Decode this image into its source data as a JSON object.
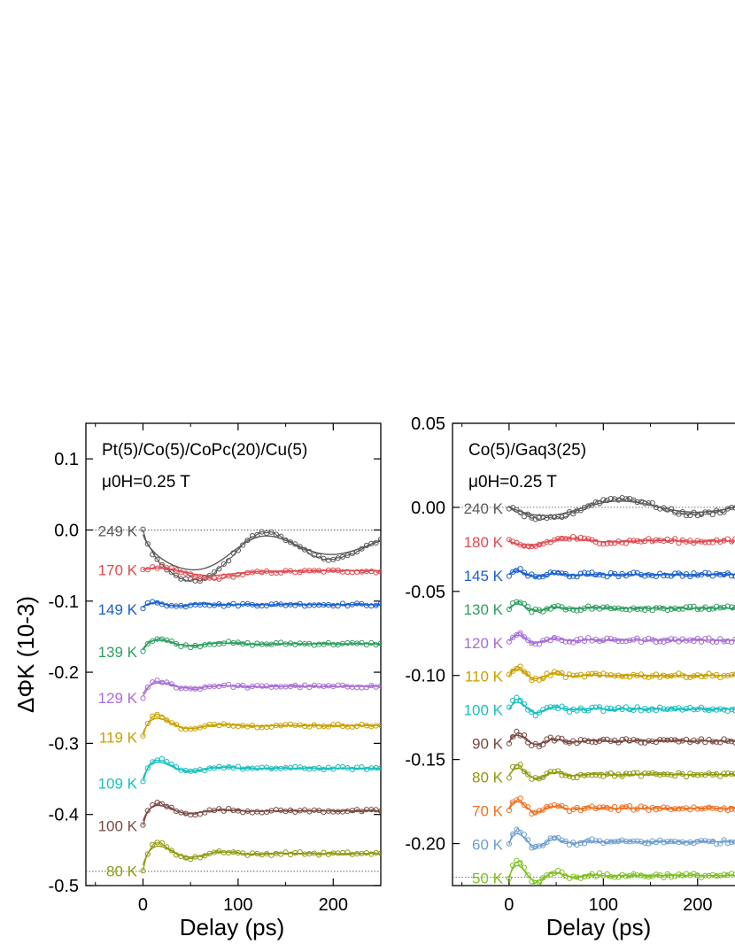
{
  "chart_data": [
    {
      "type": "line",
      "id": "left",
      "annotation_lines": [
        "Pt(5)/Co(5)/CoPc(20)/Cu(5)",
        "μ0H=0.25 T"
      ],
      "xlabel": "Delay (ps)",
      "ylabel": "ΔΦK (10-3)",
      "xlim": [
        -60,
        250
      ],
      "ylim": [
        -0.5,
        0.15
      ],
      "xticks": [
        0,
        100,
        200
      ],
      "yticks": [
        0.1,
        0.0,
        -0.1,
        -0.2,
        -0.3,
        -0.4,
        -0.5
      ],
      "ytick_labels": [
        "0.1",
        "0.0",
        "-0.1",
        "-0.2",
        "-0.3",
        "-0.4",
        "-0.5"
      ],
      "reference_lines": [
        0.0,
        -0.48
      ],
      "series": [
        {
          "name": "249 K",
          "color": "#5a5a5a",
          "offset": 0.0,
          "plateau": -0.02,
          "fit_plateau": -0.02,
          "amp": -0.04,
          "dip": -0.035,
          "period": 160,
          "decay": 300
        },
        {
          "name": "170 K",
          "color": "#e04a50",
          "offset": -0.055,
          "plateau": -0.058,
          "fit_plateau": -0.057,
          "amp": 0.008,
          "dip": -0.008,
          "period": 90,
          "decay": 60
        },
        {
          "name": "149 K",
          "color": "#1a5fcf",
          "offset": -0.11,
          "plateau": -0.105,
          "fit_plateau": -0.105,
          "amp": 0.006,
          "dip": 0.0,
          "period": 50,
          "decay": 40
        },
        {
          "name": "139 K",
          "color": "#2e9e5e",
          "offset": -0.17,
          "plateau": -0.16,
          "fit_plateau": -0.16,
          "amp": 0.012,
          "dip": 0.0,
          "period": 70,
          "decay": 40
        },
        {
          "name": "129 K",
          "color": "#a66ed6",
          "offset": -0.235,
          "plateau": -0.22,
          "fit_plateau": -0.22,
          "amp": 0.012,
          "dip": 0.0,
          "period": 70,
          "decay": 40
        },
        {
          "name": "119 K",
          "color": "#c9a000",
          "offset": -0.29,
          "plateau": -0.275,
          "fit_plateau": -0.275,
          "amp": 0.025,
          "dip": 0.0,
          "period": 70,
          "decay": 35
        },
        {
          "name": "109 K",
          "color": "#18bfbf",
          "offset": -0.355,
          "plateau": -0.335,
          "fit_plateau": -0.335,
          "amp": 0.022,
          "dip": 0.0,
          "period": 70,
          "decay": 35
        },
        {
          "name": "100 K",
          "color": "#7a4a44",
          "offset": -0.415,
          "plateau": -0.395,
          "fit_plateau": -0.395,
          "amp": 0.02,
          "dip": 0.0,
          "period": 70,
          "decay": 35
        },
        {
          "name": "80 K",
          "color": "#8f9a10",
          "offset": -0.478,
          "plateau": -0.455,
          "fit_plateau": -0.455,
          "amp": 0.025,
          "dip": 0.0,
          "period": 70,
          "decay": 40
        }
      ]
    },
    {
      "type": "line",
      "id": "right",
      "annotation_lines": [
        "Co(5)/Gaq3(25)",
        "μ0H=0.25 T"
      ],
      "xlabel": "Delay (ps)",
      "ylabel": "",
      "xlim": [
        -60,
        250
      ],
      "ylim": [
        -0.225,
        0.05
      ],
      "xticks": [
        0,
        100,
        200
      ],
      "yticks": [
        0.05,
        0.0,
        -0.05,
        -0.1,
        -0.15,
        -0.2
      ],
      "ytick_labels": [
        "0.05",
        "0.00",
        "-0.05",
        "-0.10",
        "-0.15",
        "-0.20"
      ],
      "reference_lines": [
        0.0,
        -0.22
      ],
      "series": [
        {
          "name": "240 K",
          "color": "#5a5a5a",
          "offset": 0.0,
          "plateau": 0.0,
          "fit_plateau": 0.0,
          "amp": -0.008,
          "dip": 0.0,
          "period": 160,
          "decay": 300
        },
        {
          "name": "180 K",
          "color": "#e04a50",
          "offset": -0.02,
          "plateau": -0.02,
          "fit_plateau": -0.02,
          "amp": -0.005,
          "dip": 0.0,
          "period": 90,
          "decay": 60
        },
        {
          "name": "145 K",
          "color": "#1a5fcf",
          "offset": -0.04,
          "plateau": -0.04,
          "fit_plateau": -0.04,
          "amp": 0.004,
          "dip": 0.0,
          "period": 40,
          "decay": 30
        },
        {
          "name": "130 K",
          "color": "#2e9e5e",
          "offset": -0.06,
          "plateau": -0.06,
          "fit_plateau": -0.06,
          "amp": 0.005,
          "dip": 0.0,
          "period": 40,
          "decay": 30
        },
        {
          "name": "120 K",
          "color": "#a66ed6",
          "offset": -0.08,
          "plateau": -0.079,
          "fit_plateau": -0.079,
          "amp": 0.006,
          "dip": 0.0,
          "period": 40,
          "decay": 30
        },
        {
          "name": "110 K",
          "color": "#c9a000",
          "offset": -0.1,
          "plateau": -0.1,
          "fit_plateau": -0.1,
          "amp": 0.007,
          "dip": 0.0,
          "period": 40,
          "decay": 30
        },
        {
          "name": "100 K",
          "color": "#18bfbf",
          "offset": -0.12,
          "plateau": -0.12,
          "fit_plateau": -0.12,
          "amp": 0.008,
          "dip": 0.0,
          "period": 40,
          "decay": 30
        },
        {
          "name": "90 K",
          "color": "#7a4a44",
          "offset": -0.14,
          "plateau": -0.139,
          "fit_plateau": -0.139,
          "amp": 0.007,
          "dip": 0.0,
          "period": 40,
          "decay": 30
        },
        {
          "name": "80 K",
          "color": "#8f9a10",
          "offset": -0.16,
          "plateau": -0.159,
          "fit_plateau": -0.159,
          "amp": 0.008,
          "dip": 0.0,
          "period": 40,
          "decay": 30
        },
        {
          "name": "70 K",
          "color": "#f07020",
          "offset": -0.18,
          "plateau": -0.179,
          "fit_plateau": -0.179,
          "amp": 0.008,
          "dip": 0.0,
          "period": 40,
          "decay": 30
        },
        {
          "name": "60 K",
          "color": "#6f9fd0",
          "offset": -0.2,
          "plateau": -0.199,
          "fit_plateau": -0.199,
          "amp": 0.01,
          "dip": 0.0,
          "period": 40,
          "decay": 30
        },
        {
          "name": "50 K",
          "color": "#7ec020",
          "offset": -0.22,
          "plateau": -0.219,
          "fit_plateau": -0.219,
          "amp": 0.012,
          "dip": 0.0,
          "period": 40,
          "decay": 30
        }
      ]
    }
  ]
}
